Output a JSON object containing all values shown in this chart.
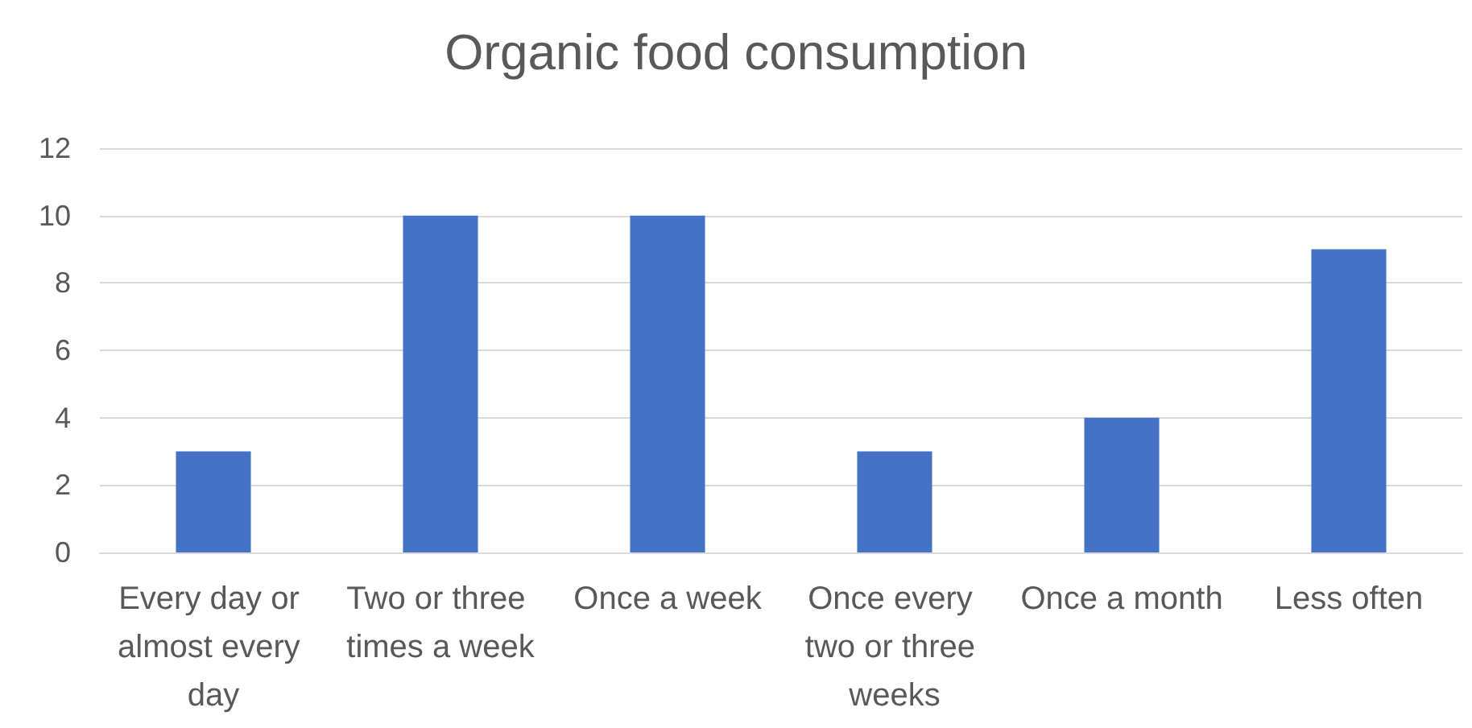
{
  "chart_data": {
    "type": "bar",
    "title": "Organic food consumption",
    "categories": [
      "Every day or almost every day",
      "Two or three times a week",
      "Once a week",
      "Once every two or three weeks",
      "Once a month",
      "Less often"
    ],
    "values": [
      3,
      10,
      10,
      3,
      4,
      9
    ],
    "color": "#4472c4",
    "ylim": [
      0,
      12
    ],
    "yticks": [
      0,
      2,
      4,
      6,
      8,
      10,
      12
    ],
    "grid": "y"
  }
}
